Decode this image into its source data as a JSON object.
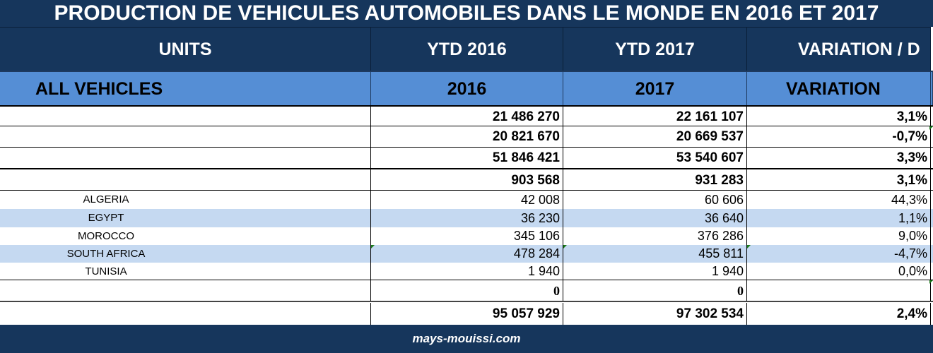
{
  "title": "PRODUCTION DE VEHICULES AUTOMOBILES DANS LE MONDE EN 2016 ET 2017",
  "header": {
    "units": "UNITS",
    "ytd2016": "YTD 2016",
    "ytd2017": "YTD 2017",
    "variation": "VARIATION / D"
  },
  "subheader": {
    "all_vehicles": "ALL VEHICLES",
    "y2016": "2016",
    "y2017": "2017",
    "variation": "VARIATION"
  },
  "rows": [
    {
      "name": "",
      "v2016": "21 486 270",
      "v2017": "22 161 107",
      "var": "3,1%"
    },
    {
      "name": "",
      "v2016": "20 821 670",
      "v2017": "20 669 537",
      "var": "-0,7%"
    },
    {
      "name": "",
      "v2016": "51 846 421",
      "v2017": "53 540 607",
      "var": "3,3%"
    },
    {
      "name": "",
      "v2016": "903 568",
      "v2017": "931 283",
      "var": "3,1%"
    },
    {
      "name": "ALGERIA",
      "v2016": "42 008",
      "v2017": "60 606",
      "var": "44,3%"
    },
    {
      "name": "EGYPT",
      "v2016": "36 230",
      "v2017": "36 640",
      "var": "1,1%"
    },
    {
      "name": "MOROCCO",
      "v2016": "345 106",
      "v2017": "376 286",
      "var": "9,0%"
    },
    {
      "name": "SOUTH AFRICA",
      "v2016": "478 284",
      "v2017": "455 811",
      "var": "-4,7%"
    },
    {
      "name": "TUNISIA",
      "v2016": "1 940",
      "v2017": "1 940",
      "var": "0,0%"
    },
    {
      "name": "",
      "v2016": "0",
      "v2017": "0",
      "var": ""
    },
    {
      "name": "",
      "v2016": "95 057 929",
      "v2017": "97 302 534",
      "var": "2,4%"
    }
  ],
  "footer": "mays-mouissi.com",
  "colors": {
    "dark_blue": "#16365c",
    "mid_blue": "#558ed5",
    "light_blue": "#c5d9f1"
  }
}
